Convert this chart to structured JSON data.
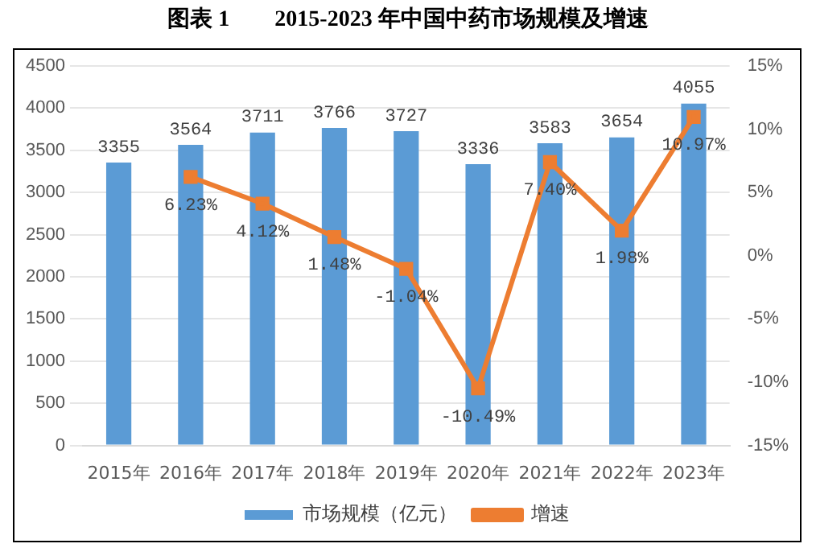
{
  "chart_data": {
    "type": "bar",
    "title": "图表 1　　2015-2023 年中国中药市场规模及增速",
    "categories": [
      "2015年",
      "2016年",
      "2017年",
      "2018年",
      "2019年",
      "2020年",
      "2021年",
      "2022年",
      "2023年"
    ],
    "series": [
      {
        "name": "市场规模（亿元）",
        "color": "#5b9bd5",
        "values": [
          3355,
          3564,
          3711,
          3766,
          3727,
          3336,
          3583,
          3654,
          4055
        ],
        "value_labels": [
          "3355",
          "3564",
          "3711",
          "3766",
          "3727",
          "3336",
          "3583",
          "3654",
          "4055"
        ]
      },
      {
        "name": "增速",
        "type": "line",
        "axis": "y2",
        "color": "#ed7d31",
        "marker": "square",
        "values": [
          null,
          6.23,
          4.12,
          1.48,
          -1.04,
          -10.49,
          7.4,
          1.98,
          10.97
        ],
        "value_labels": [
          null,
          "6.23%",
          "4.12%",
          "1.48%",
          "-1.04%",
          "-10.49%",
          "7.40%",
          "1.98%",
          "10.97%"
        ]
      }
    ],
    "ylim": [
      0,
      4500
    ],
    "yticks": [
      0,
      500,
      1000,
      1500,
      2000,
      2500,
      3000,
      3500,
      4000,
      4500
    ],
    "y2lim": [
      -15,
      15
    ],
    "y2ticks": [
      {
        "value": -15,
        "label": "-15%"
      },
      {
        "value": -10,
        "label": "-10%"
      },
      {
        "value": -5,
        "label": "-5%"
      },
      {
        "value": 0,
        "label": "0%"
      },
      {
        "value": 5,
        "label": "5%"
      },
      {
        "value": 10,
        "label": "10%"
      },
      {
        "value": 15,
        "label": "15%"
      }
    ],
    "grid": "y",
    "legend": "bottom"
  }
}
